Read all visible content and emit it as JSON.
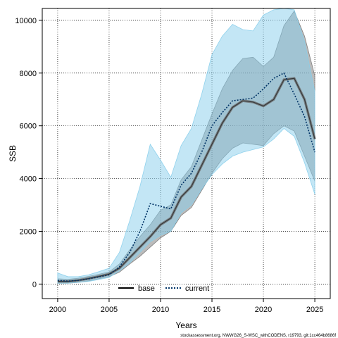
{
  "chart_data": {
    "type": "line",
    "xlabel": "Years",
    "ylabel": "SSB",
    "xlim": [
      1998.5,
      2026.5
    ],
    "ylim": [
      -550,
      10450
    ],
    "xticks": [
      2000,
      2005,
      2010,
      2015,
      2020,
      2025
    ],
    "yticks": [
      0,
      2000,
      4000,
      6000,
      8000,
      10000
    ],
    "grid": true,
    "legend_position": "bottom-center",
    "x": [
      2000,
      2001,
      2002,
      2003,
      2004,
      2005,
      2006,
      2007,
      2008,
      2009,
      2010,
      2011,
      2012,
      2013,
      2014,
      2015,
      2016,
      2017,
      2018,
      2019,
      2020,
      2021,
      2022,
      2023,
      2024,
      2025
    ],
    "series": [
      {
        "name": "base",
        "color": "#000000",
        "style": "solid",
        "values": [
          100,
          100,
          140,
          210,
          290,
          380,
          600,
          1000,
          1400,
          1800,
          2250,
          2500,
          3300,
          3700,
          4500,
          5300,
          6100,
          6700,
          6950,
          6900,
          6750,
          7000,
          7750,
          7800,
          7000,
          5500
        ],
        "lower": [
          30,
          30,
          60,
          120,
          200,
          280,
          450,
          760,
          1050,
          1400,
          1750,
          2000,
          2600,
          2900,
          3550,
          4200,
          4750,
          5150,
          5350,
          5300,
          5250,
          5700,
          6000,
          5800,
          4850,
          3900
        ],
        "upper": [
          200,
          180,
          220,
          290,
          370,
          460,
          760,
          1300,
          1800,
          2250,
          2800,
          3000,
          3950,
          4450,
          5450,
          6450,
          7400,
          8100,
          8550,
          8600,
          8250,
          8600,
          9800,
          10350,
          9400,
          7900
        ],
        "band_color": "#777777"
      },
      {
        "name": "current",
        "color": "#003366",
        "style": "dotted",
        "values": [
          140,
          110,
          140,
          200,
          270,
          350,
          650,
          1200,
          2000,
          3050,
          2950,
          2850,
          3750,
          4200,
          5000,
          6000,
          6500,
          6950,
          7000,
          7050,
          7400,
          7800,
          8000,
          7200,
          6350,
          5000
        ],
        "lower": [
          30,
          30,
          60,
          100,
          170,
          250,
          500,
          800,
          1200,
          1600,
          1850,
          2000,
          2700,
          3000,
          3600,
          4150,
          4550,
          4850,
          5000,
          5100,
          5200,
          5500,
          5900,
          5600,
          4600,
          3400
        ],
        "upper": [
          420,
          280,
          280,
          350,
          470,
          600,
          1200,
          2400,
          3700,
          5300,
          4700,
          4050,
          5250,
          5900,
          7200,
          8700,
          9400,
          9850,
          9650,
          9600,
          10200,
          10400,
          10450,
          10400,
          9200,
          7300
        ],
        "band_color": "#87ceeb"
      }
    ],
    "footnote": "stockassessment.org, NWWG26_S-WSC_withCODENS, r19793, git:1cc464b8686f"
  }
}
